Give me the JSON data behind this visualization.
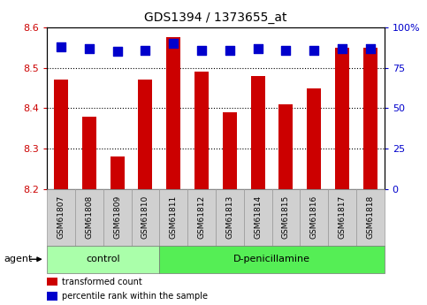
{
  "title": "GDS1394 / 1373655_at",
  "categories": [
    "GSM61807",
    "GSM61808",
    "GSM61809",
    "GSM61810",
    "GSM61811",
    "GSM61812",
    "GSM61813",
    "GSM61814",
    "GSM61815",
    "GSM61816",
    "GSM61817",
    "GSM61818"
  ],
  "bar_values": [
    8.47,
    8.38,
    8.28,
    8.47,
    8.575,
    8.49,
    8.39,
    8.48,
    8.41,
    8.45,
    8.55,
    8.55
  ],
  "bar_bottom": 8.2,
  "percentile_values": [
    88,
    87,
    85,
    86,
    90,
    86,
    86,
    87,
    86,
    86,
    87,
    87
  ],
  "bar_color": "#cc0000",
  "percentile_color": "#0000cc",
  "ylim_left": [
    8.2,
    8.6
  ],
  "ylim_right": [
    0,
    100
  ],
  "yticks_left": [
    8.2,
    8.3,
    8.4,
    8.5,
    8.6
  ],
  "yticks_right": [
    0,
    25,
    50,
    75,
    100
  ],
  "ytick_labels_right": [
    "0",
    "25",
    "50",
    "75",
    "100%"
  ],
  "grid_yticks": [
    8.3,
    8.4,
    8.5
  ],
  "groups": [
    {
      "label": "control",
      "start": 0,
      "end": 4,
      "color": "#aaffaa"
    },
    {
      "label": "D-penicillamine",
      "start": 4,
      "end": 12,
      "color": "#55ee55"
    }
  ],
  "agent_label": "agent",
  "legend_items": [
    {
      "label": "transformed count",
      "color": "#cc0000"
    },
    {
      "label": "percentile rank within the sample",
      "color": "#0000cc"
    }
  ],
  "background_color": "#ffffff",
  "plot_bg_color": "#ffffff",
  "tick_color_left": "#cc0000",
  "tick_color_right": "#0000cc",
  "bar_width": 0.5,
  "percentile_marker_size": 7,
  "xtick_bg_color": "#d0d0d0",
  "xtick_border_color": "#999999"
}
